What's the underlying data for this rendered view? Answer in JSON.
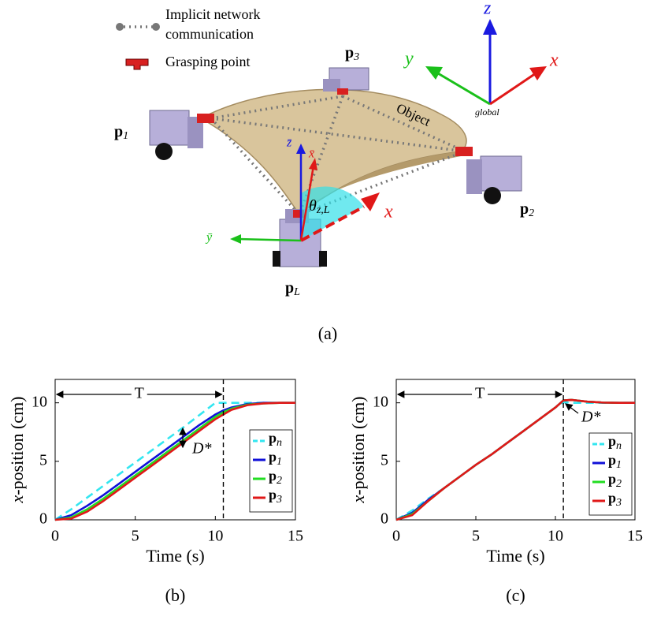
{
  "figure": {
    "panel_a": {
      "label": "(a)",
      "legend": [
        "Implicit network",
        "communication",
        "Grasping point"
      ],
      "robots": [
        "p3",
        "p1",
        "p2",
        "pL"
      ],
      "object": "Object",
      "global_axes": [
        "z",
        "y",
        "x"
      ],
      "global": "global",
      "local_axes": [
        "z̄",
        "x̄",
        "ȳ"
      ],
      "angle": "θz,L",
      "leader_x": "x"
    }
  },
  "chart_data": [
    {
      "type": "line",
      "label": "(b)",
      "xlabel": "Time (s)",
      "ylabel": "x-position (cm)",
      "x": [
        0,
        1,
        2,
        3,
        4,
        5,
        6,
        7,
        8,
        9,
        10,
        10.5,
        11,
        12,
        13,
        14,
        15
      ],
      "xlim": [
        0,
        15
      ],
      "ylim": [
        0,
        12
      ],
      "xticks": [
        0,
        5,
        10,
        15
      ],
      "yticks": [
        0,
        5,
        10
      ],
      "vline": 10.5,
      "annotations": [
        "T",
        "D*"
      ],
      "legend": "right",
      "series": [
        {
          "name": "pn",
          "color": "#33e6f0",
          "linestyle": "dashed",
          "values": [
            0,
            0.9,
            1.9,
            2.9,
            3.9,
            4.9,
            5.9,
            6.9,
            7.9,
            8.95,
            10,
            10,
            10,
            10,
            10,
            10,
            10
          ]
        },
        {
          "name": "p1",
          "color": "#1010d8",
          "linestyle": "solid",
          "values": [
            0,
            0.4,
            1.2,
            2.1,
            3.1,
            4.1,
            5.1,
            6.1,
            7.1,
            8.1,
            9.0,
            9.35,
            9.6,
            9.9,
            10,
            10,
            10
          ]
        },
        {
          "name": "p2",
          "color": "#22dd22",
          "linestyle": "solid",
          "values": [
            0,
            0.2,
            0.9,
            1.8,
            2.8,
            3.8,
            4.8,
            5.8,
            6.8,
            7.8,
            8.8,
            9.2,
            9.5,
            9.85,
            9.95,
            10,
            10
          ]
        },
        {
          "name": "p3",
          "color": "#e01818",
          "linestyle": "solid",
          "values": [
            0,
            0.1,
            0.7,
            1.6,
            2.6,
            3.6,
            4.6,
            5.6,
            6.6,
            7.6,
            8.6,
            9.0,
            9.4,
            9.8,
            9.95,
            10,
            10
          ]
        }
      ]
    },
    {
      "type": "line",
      "label": "(c)",
      "xlabel": "Time (s)",
      "ylabel": "x-position (cm)",
      "x": [
        0,
        1,
        2,
        3,
        4,
        5,
        6,
        7,
        8,
        9,
        10,
        10.5,
        11,
        12,
        13,
        14,
        15
      ],
      "xlim": [
        0,
        15
      ],
      "ylim": [
        0,
        12
      ],
      "xticks": [
        0,
        5,
        10,
        15
      ],
      "yticks": [
        0,
        5,
        10
      ],
      "vline": 10.5,
      "annotations": [
        "T",
        "D*"
      ],
      "legend": "lower right",
      "series": [
        {
          "name": "pn",
          "color": "#33e6f0",
          "linestyle": "dashed",
          "values": [
            0,
            0.8,
            1.8,
            2.7,
            3.7,
            4.7,
            5.6,
            6.6,
            7.6,
            8.6,
            9.6,
            10.05,
            10,
            10,
            10,
            10,
            10
          ]
        },
        {
          "name": "p1",
          "color": "#1010d8",
          "linestyle": "solid",
          "values": [
            0,
            0.6,
            1.7,
            2.7,
            3.7,
            4.7,
            5.6,
            6.6,
            7.6,
            8.6,
            9.6,
            10.2,
            10.25,
            10.1,
            10.02,
            10,
            10
          ]
        },
        {
          "name": "p2",
          "color": "#22dd22",
          "linestyle": "solid",
          "values": [
            0,
            0.5,
            1.6,
            2.7,
            3.7,
            4.7,
            5.6,
            6.6,
            7.6,
            8.6,
            9.6,
            10.2,
            10.25,
            10.1,
            10.02,
            10,
            10
          ]
        },
        {
          "name": "p3",
          "color": "#e01818",
          "linestyle": "solid",
          "values": [
            0,
            0.4,
            1.6,
            2.7,
            3.7,
            4.7,
            5.6,
            6.6,
            7.6,
            8.6,
            9.6,
            10.2,
            10.25,
            10.1,
            10.02,
            10,
            10
          ]
        }
      ]
    }
  ]
}
